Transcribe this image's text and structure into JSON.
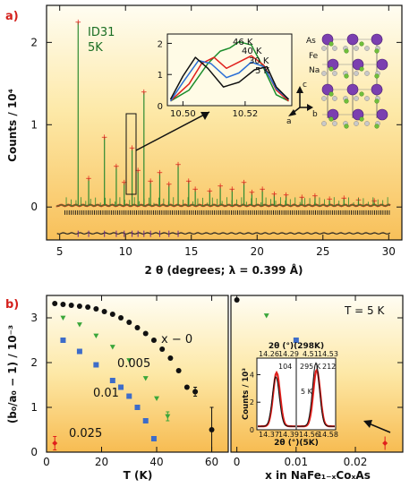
{
  "chart_data": [
    {
      "panel": "a)",
      "type": "line",
      "xlabel": "2 θ (degrees; λ = 0.399 Å)",
      "ylabel": "Counts / 10⁴",
      "xlim": [
        4,
        31
      ],
      "ylim": [
        -0.4,
        2.45
      ],
      "xticks": [
        5,
        10,
        15,
        20,
        25,
        30
      ],
      "yticks": [
        0,
        1,
        2
      ],
      "annotation": [
        "ID31",
        "5K"
      ],
      "peaks": [
        {
          "x": 6.4,
          "y": 2.25
        },
        {
          "x": 7.2,
          "y": 0.35
        },
        {
          "x": 8.4,
          "y": 0.85
        },
        {
          "x": 9.3,
          "y": 0.5
        },
        {
          "x": 9.9,
          "y": 0.3
        },
        {
          "x": 10.5,
          "y": 0.72
        },
        {
          "x": 10.95,
          "y": 0.45
        },
        {
          "x": 11.4,
          "y": 1.4
        },
        {
          "x": 11.9,
          "y": 0.32
        },
        {
          "x": 12.6,
          "y": 0.42
        },
        {
          "x": 13.3,
          "y": 0.28
        },
        {
          "x": 14.0,
          "y": 0.52
        },
        {
          "x": 14.8,
          "y": 0.32
        },
        {
          "x": 15.3,
          "y": 0.22
        },
        {
          "x": 16.4,
          "y": 0.2
        },
        {
          "x": 17.2,
          "y": 0.26
        },
        {
          "x": 18.1,
          "y": 0.22
        },
        {
          "x": 19.0,
          "y": 0.3
        },
        {
          "x": 19.6,
          "y": 0.18
        },
        {
          "x": 20.4,
          "y": 0.22
        },
        {
          "x": 21.3,
          "y": 0.16
        },
        {
          "x": 22.2,
          "y": 0.15
        },
        {
          "x": 23.4,
          "y": 0.12
        },
        {
          "x": 24.4,
          "y": 0.14
        },
        {
          "x": 25.5,
          "y": 0.1
        },
        {
          "x": 26.6,
          "y": 0.11
        },
        {
          "x": 27.7,
          "y": 0.09
        },
        {
          "x": 28.9,
          "y": 0.08
        }
      ],
      "difference_level": -0.32,
      "inset": {
        "xlim": [
          10.495,
          10.535
        ],
        "xticks": [
          10.5,
          10.52
        ],
        "yticks": [
          0,
          1,
          2
        ],
        "series": [
          {
            "name": "46 K",
            "color": "#1a8c2a",
            "x": [
              10.496,
              10.502,
              10.508,
              10.512,
              10.515,
              10.518,
              10.522,
              10.526,
              10.53,
              10.534
            ],
            "y": [
              0.15,
              0.5,
              1.35,
              1.75,
              1.85,
              2.05,
              1.95,
              1.2,
              0.35,
              0.15
            ]
          },
          {
            "name": "40 K",
            "color": "#e0201c",
            "x": [
              10.496,
              10.502,
              10.506,
              10.51,
              10.514,
              10.518,
              10.522,
              10.526,
              10.53,
              10.534
            ],
            "y": [
              0.15,
              0.7,
              1.35,
              1.55,
              1.2,
              1.4,
              1.6,
              1.3,
              0.5,
              0.15
            ]
          },
          {
            "name": "30 K",
            "color": "#2a6fd6",
            "x": [
              10.496,
              10.5,
              10.505,
              10.509,
              10.514,
              10.518,
              10.522,
              10.526,
              10.53,
              10.534
            ],
            "y": [
              0.15,
              0.75,
              1.45,
              1.35,
              0.9,
              1.05,
              1.4,
              1.25,
              0.55,
              0.2
            ]
          },
          {
            "name": "5 K",
            "color": "#111111",
            "x": [
              10.496,
              10.5,
              10.504,
              10.508,
              10.513,
              10.518,
              10.523,
              10.527,
              10.53,
              10.534
            ],
            "y": [
              0.2,
              0.95,
              1.55,
              1.2,
              0.6,
              0.75,
              1.15,
              1.25,
              0.6,
              0.2
            ]
          }
        ]
      },
      "structure_labels": [
        "As",
        "Fe",
        "Na",
        "c",
        "a",
        "b"
      ]
    },
    {
      "panel": "b)",
      "type": "scatter",
      "xlabel": "T (K)",
      "ylabel": "(b₀/a₀ − 1) / 10⁻³",
      "xlim": [
        0,
        66
      ],
      "ylim": [
        0,
        3.5
      ],
      "xticks": [
        0,
        20,
        40,
        60
      ],
      "yticks": [
        0,
        1,
        2,
        3
      ],
      "series": [
        {
          "name": "x − 0",
          "color": "#111111",
          "marker": "circle",
          "x": [
            3,
            6,
            9,
            12,
            15,
            18,
            21,
            24,
            27,
            30,
            33,
            36,
            39,
            42,
            45,
            48,
            51,
            54,
            60
          ],
          "y": [
            3.32,
            3.3,
            3.28,
            3.26,
            3.24,
            3.2,
            3.14,
            3.08,
            3.0,
            2.9,
            2.78,
            2.65,
            2.5,
            2.3,
            2.1,
            1.82,
            1.45,
            1.35,
            0.5
          ],
          "err": [
            0,
            0,
            0,
            0,
            0,
            0,
            0,
            0,
            0,
            0,
            0,
            0,
            0,
            0,
            0,
            0,
            0,
            0.1,
            0.5
          ]
        },
        {
          "name": "0.005",
          "color": "#3aa63a",
          "marker": "triangle",
          "x": [
            6,
            12,
            18,
            24,
            30,
            36,
            40,
            44
          ],
          "y": [
            3.0,
            2.85,
            2.6,
            2.35,
            2.05,
            1.65,
            1.2,
            0.8
          ],
          "err": [
            0,
            0,
            0,
            0,
            0,
            0,
            0,
            0.1
          ]
        },
        {
          "name": "0.01",
          "color": "#3d6cc9",
          "marker": "square",
          "x": [
            6,
            12,
            18,
            24,
            27,
            30,
            33,
            36,
            39
          ],
          "y": [
            2.5,
            2.25,
            1.95,
            1.6,
            1.45,
            1.25,
            1.0,
            0.7,
            0.3
          ],
          "err": [
            0,
            0,
            0,
            0,
            0,
            0,
            0,
            0,
            0
          ]
        },
        {
          "name": "0.025",
          "color": "#e0201c",
          "marker": "diamond",
          "x": [
            3
          ],
          "y": [
            0.2
          ],
          "err": [
            0.15
          ]
        }
      ]
    },
    {
      "panel": "b2",
      "type": "scatter",
      "xlabel": "x in NaFe₁₋ₓCoₓAs",
      "xlim": [
        -0.001,
        0.028
      ],
      "xticks": [
        0,
        0.01,
        0.02
      ],
      "annotation": "T = 5 K",
      "series": [
        {
          "name": "0",
          "color": "#111111",
          "marker": "circle",
          "x": [
            0.0
          ],
          "y": [
            3.4
          ],
          "err": [
            0
          ]
        },
        {
          "name": "0.005",
          "color": "#3aa63a",
          "marker": "triangle",
          "x": [
            0.005
          ],
          "y": [
            3.05
          ],
          "err": [
            0
          ]
        },
        {
          "name": "0.01",
          "color": "#3d6cc9",
          "marker": "square",
          "x": [
            0.01
          ],
          "y": [
            2.5
          ],
          "err": [
            0
          ]
        },
        {
          "name": "0.025",
          "color": "#e0201c",
          "marker": "diamond",
          "x": [
            0.025
          ],
          "y": [
            0.2
          ],
          "err": [
            0.15
          ]
        }
      ],
      "inset": {
        "ylabel": "Counts / 10³",
        "xlabel_bottom": "2θ (°)(5K)",
        "xlabel_top": "2θ (°)(298K)",
        "yticks": [
          0,
          2,
          4
        ],
        "left_top_ticks": [
          "14.26",
          "14.29"
        ],
        "left_bottom_ticks": [
          "14.37",
          "14.39"
        ],
        "left_label": "104",
        "right_top_ticks": [
          "4.51",
          "14.53"
        ],
        "right_bottom_ticks": [
          "14.56",
          "14.58"
        ],
        "right_labels": [
          "295 K",
          "212",
          "5 K"
        ]
      }
    }
  ]
}
